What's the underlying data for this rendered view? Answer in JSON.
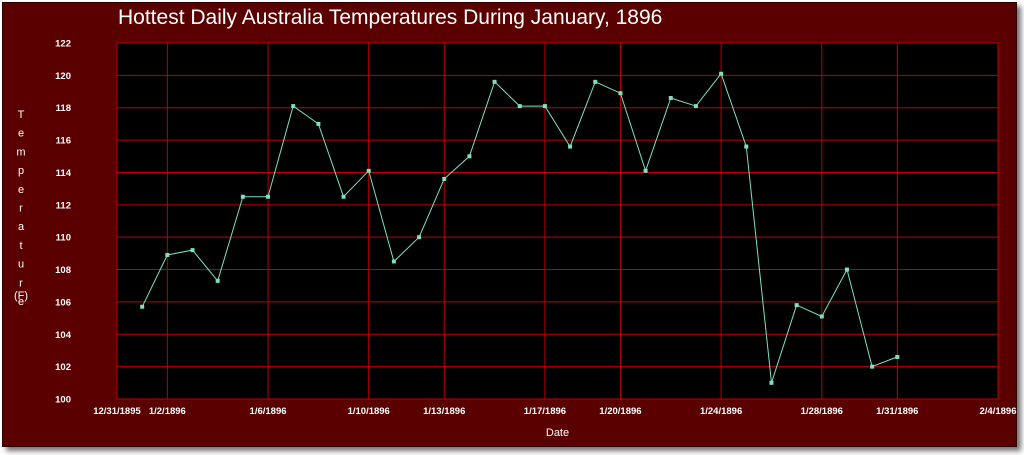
{
  "chart_data": {
    "type": "line",
    "title": "Hottest Daily Australia Temperatures During January, 1896",
    "xlabel": "Date",
    "ylabel": "Temperature",
    "ylabel_unit": "(F)",
    "ylim": [
      100,
      122
    ],
    "y_ticks": [
      "100",
      "102",
      "104",
      "106",
      "108",
      "110",
      "112",
      "114",
      "116",
      "118",
      "120",
      "122"
    ],
    "x_ticks": [
      "12/31/1895",
      "1/2/1896",
      "1/6/1896",
      "1/10/1896",
      "1/13/1896",
      "1/17/1896",
      "1/20/1896",
      "1/24/1896",
      "1/28/1896",
      "1/31/1896",
      "2/4/1896"
    ],
    "grid": true,
    "colors": {
      "background": "#5a0000",
      "plot": "#000000",
      "grid": "#c00000",
      "line": "#7fe0c0"
    },
    "series": [
      {
        "x": [
          "1/1/1896",
          "1/2/1896",
          "1/3/1896",
          "1/4/1896",
          "1/5/1896",
          "1/6/1896",
          "1/7/1896",
          "1/8/1896",
          "1/9/1896",
          "1/10/1896",
          "1/11/1896",
          "1/12/1896",
          "1/13/1896",
          "1/14/1896",
          "1/15/1896",
          "1/16/1896",
          "1/17/1896",
          "1/18/1896",
          "1/19/1896",
          "1/20/1896",
          "1/21/1896",
          "1/22/1896",
          "1/23/1896",
          "1/24/1896",
          "1/25/1896",
          "1/26/1896",
          "1/27/1896",
          "1/28/1896",
          "1/29/1896",
          "1/30/1896",
          "1/31/1896"
        ],
        "y": [
          105.7,
          108.9,
          109.2,
          107.3,
          112.5,
          112.5,
          118.1,
          117.0,
          112.5,
          114.1,
          108.5,
          110.0,
          113.6,
          115.0,
          119.6,
          118.1,
          118.1,
          115.6,
          119.6,
          118.9,
          114.1,
          118.6,
          118.1,
          120.1,
          115.6,
          101.0,
          105.8,
          105.1,
          108.0,
          102.0,
          102.6
        ]
      }
    ]
  }
}
